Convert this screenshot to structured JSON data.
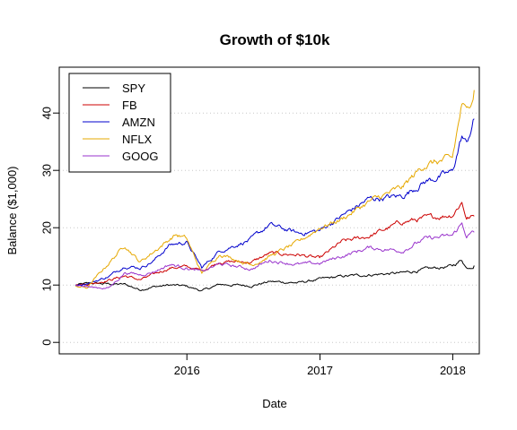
{
  "chart_data": {
    "type": "line",
    "title": "Growth of $10k",
    "xlabel": "Date",
    "ylabel": "Balance ($1,000)",
    "xlim": [
      "2015-01-15",
      "2018-03-15"
    ],
    "ylim": [
      -2,
      48
    ],
    "x_ticks": [
      {
        "date": "2016-01-01",
        "label": "2016"
      },
      {
        "date": "2017-01-01",
        "label": "2017"
      },
      {
        "date": "2018-01-01",
        "label": "2018"
      }
    ],
    "y_ticks": [
      0,
      10,
      20,
      30,
      40
    ],
    "grid": "horizontal dotted",
    "legend_position": "top-left",
    "series": [
      {
        "name": "SPY",
        "color": "#000000",
        "points": [
          [
            "2015-03-01",
            10
          ],
          [
            "2015-04-15",
            10.3
          ],
          [
            "2015-06-01",
            10.2
          ],
          [
            "2015-07-15",
            10.1
          ],
          [
            "2015-08-25",
            9.2
          ],
          [
            "2015-10-01",
            9.7
          ],
          [
            "2015-11-15",
            10.0
          ],
          [
            "2015-12-31",
            9.8
          ],
          [
            "2016-02-11",
            9.0
          ],
          [
            "2016-04-01",
            10.1
          ],
          [
            "2016-06-27",
            9.9
          ],
          [
            "2016-08-15",
            10.6
          ],
          [
            "2016-11-04",
            10.4
          ],
          [
            "2016-12-31",
            11.0
          ],
          [
            "2017-03-01",
            11.5
          ],
          [
            "2017-05-15",
            11.8
          ],
          [
            "2017-08-15",
            12.1
          ],
          [
            "2017-10-15",
            12.7
          ],
          [
            "2017-12-31",
            13.3
          ],
          [
            "2018-01-26",
            14.4
          ],
          [
            "2018-02-08",
            13.0
          ],
          [
            "2018-03-01",
            13.4
          ]
        ]
      },
      {
        "name": "FB",
        "color": "#cc0000",
        "points": [
          [
            "2015-03-01",
            10
          ],
          [
            "2015-04-15",
            10.3
          ],
          [
            "2015-06-01",
            10.9
          ],
          [
            "2015-07-15",
            11.6
          ],
          [
            "2015-08-25",
            10.9
          ],
          [
            "2015-10-01",
            11.8
          ],
          [
            "2015-11-15",
            13.0
          ],
          [
            "2015-12-31",
            13.2
          ],
          [
            "2016-02-11",
            12.5
          ],
          [
            "2016-04-01",
            14.1
          ],
          [
            "2016-06-27",
            14.0
          ],
          [
            "2016-08-15",
            15.5
          ],
          [
            "2016-11-04",
            15.3
          ],
          [
            "2016-12-31",
            14.6
          ],
          [
            "2017-03-01",
            17.5
          ],
          [
            "2017-05-15",
            18.5
          ],
          [
            "2017-08-15",
            21.0
          ],
          [
            "2017-10-15",
            21.6
          ],
          [
            "2017-12-31",
            22.3
          ],
          [
            "2018-01-26",
            24.5
          ],
          [
            "2018-02-08",
            21.7
          ],
          [
            "2018-03-01",
            22.0
          ]
        ]
      },
      {
        "name": "AMZN",
        "color": "#0000cc",
        "points": [
          [
            "2015-03-01",
            10
          ],
          [
            "2015-04-15",
            10.5
          ],
          [
            "2015-06-01",
            11.5
          ],
          [
            "2015-07-15",
            13.4
          ],
          [
            "2015-08-25",
            13.0
          ],
          [
            "2015-10-01",
            14.2
          ],
          [
            "2015-11-15",
            17.0
          ],
          [
            "2015-12-31",
            17.5
          ],
          [
            "2016-02-11",
            13.0
          ],
          [
            "2016-04-01",
            16.0
          ],
          [
            "2016-06-27",
            18.0
          ],
          [
            "2016-08-15",
            20.5
          ],
          [
            "2016-11-04",
            19.0
          ],
          [
            "2016-12-31",
            19.5
          ],
          [
            "2017-03-01",
            22.0
          ],
          [
            "2017-05-15",
            25.0
          ],
          [
            "2017-08-15",
            25.5
          ],
          [
            "2017-10-15",
            28.0
          ],
          [
            "2017-12-31",
            29.7
          ],
          [
            "2018-01-26",
            36.0
          ],
          [
            "2018-02-08",
            34.5
          ],
          [
            "2018-03-01",
            39.0
          ]
        ]
      },
      {
        "name": "NFLX",
        "color": "#e6a800",
        "points": [
          [
            "2015-03-01",
            9.8
          ],
          [
            "2015-04-01",
            9.5
          ],
          [
            "2015-05-10",
            12.3
          ],
          [
            "2015-07-15",
            17.0
          ],
          [
            "2015-08-25",
            14.0
          ],
          [
            "2015-10-01",
            15.8
          ],
          [
            "2015-12-01",
            18.8
          ],
          [
            "2015-12-31",
            18.1
          ],
          [
            "2016-02-11",
            12.0
          ],
          [
            "2016-04-01",
            15.5
          ],
          [
            "2016-06-27",
            13.5
          ],
          [
            "2016-08-15",
            15.0
          ],
          [
            "2016-11-04",
            17.5
          ],
          [
            "2016-12-31",
            20.0
          ],
          [
            "2017-03-01",
            21.5
          ],
          [
            "2017-05-15",
            24.5
          ],
          [
            "2017-08-15",
            27.0
          ],
          [
            "2017-10-15",
            31.0
          ],
          [
            "2017-12-31",
            32.0
          ],
          [
            "2018-01-26",
            41.5
          ],
          [
            "2018-02-08",
            40.0
          ],
          [
            "2018-03-01",
            44.0
          ]
        ]
      },
      {
        "name": "GOOG",
        "color": "#9933cc",
        "points": [
          [
            "2015-03-01",
            10
          ],
          [
            "2015-04-15",
            9.6
          ],
          [
            "2015-06-01",
            9.5
          ],
          [
            "2015-07-15",
            12.2
          ],
          [
            "2015-08-25",
            11.8
          ],
          [
            "2015-10-01",
            12.3
          ],
          [
            "2015-11-15",
            13.6
          ],
          [
            "2015-12-31",
            13.0
          ],
          [
            "2016-02-11",
            12.3
          ],
          [
            "2016-04-01",
            13.7
          ],
          [
            "2016-06-27",
            12.8
          ],
          [
            "2016-08-15",
            14.3
          ],
          [
            "2016-11-04",
            13.6
          ],
          [
            "2016-12-31",
            13.8
          ],
          [
            "2017-03-01",
            15.0
          ],
          [
            "2017-05-15",
            16.5
          ],
          [
            "2017-08-15",
            16.0
          ],
          [
            "2017-10-15",
            18.0
          ],
          [
            "2017-12-31",
            18.6
          ],
          [
            "2018-01-26",
            20.7
          ],
          [
            "2018-02-08",
            18.6
          ],
          [
            "2018-03-01",
            19.2
          ]
        ]
      }
    ]
  }
}
